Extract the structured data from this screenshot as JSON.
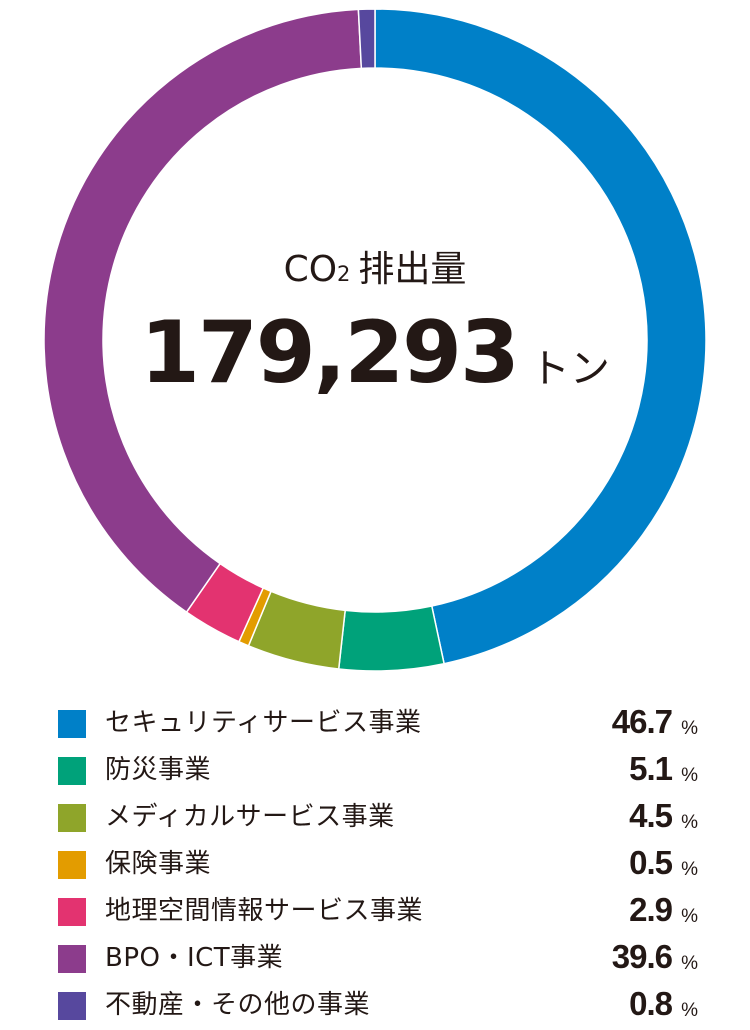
{
  "chart_data": {
    "type": "pie",
    "center": {
      "label_main": "CO",
      "label_sub": "2",
      "label_rest": "排出量",
      "total": "179,293",
      "total_unit": "トン"
    },
    "unit": "%",
    "slices": [
      {
        "label": "セキュリティサービス事業",
        "value": 46.7,
        "display": "46.7",
        "color": "#0080c8"
      },
      {
        "label": "防災事業",
        "value": 5.1,
        "display": "5.1",
        "color": "#00a27a"
      },
      {
        "label": "メディカルサービス事業",
        "value": 4.5,
        "display": "4.5",
        "color": "#8fa52a"
      },
      {
        "label": "保険事業",
        "value": 0.5,
        "display": "0.5",
        "color": "#e39c00"
      },
      {
        "label": "地理空間情報サービス事業",
        "value": 2.9,
        "display": "2.9",
        "color": "#e33370"
      },
      {
        "label": "BPO・ICT事業",
        "value": 39.6,
        "display": "39.6",
        "color": "#8c3c8c"
      },
      {
        "label": "不動産・その他の事業",
        "value": 0.8,
        "display": "0.8",
        "color": "#57489e"
      }
    ]
  }
}
